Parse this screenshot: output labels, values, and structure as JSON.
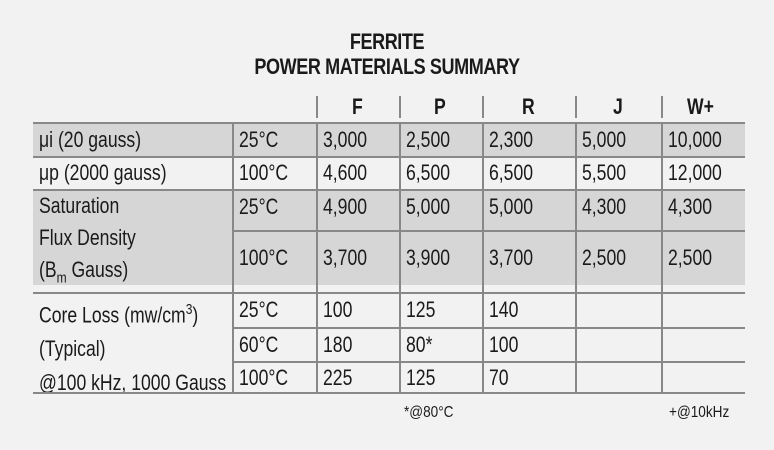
{
  "title": {
    "line1": "FERRITE",
    "line2": "POWER MATERIALS SUMMARY"
  },
  "columns": [
    "F",
    "P",
    "R",
    "J",
    "W+"
  ],
  "rows": {
    "ui": {
      "label": "μi (20 gauss)",
      "temp": "25°C",
      "values": [
        "3,000",
        "2,500",
        "2,300",
        "5,000",
        "10,000"
      ]
    },
    "up": {
      "label": "μp (2000 gauss)",
      "temp": "100°C",
      "values": [
        "4,600",
        "6,500",
        "6,500",
        "5,500",
        "12,000"
      ]
    },
    "sat": {
      "label_line1": "Saturation",
      "label_line2": "Flux Density",
      "label_line3_pre": "(B",
      "label_line3_sub": "m",
      "label_line3_post": " Gauss)",
      "r1": {
        "temp": "25°C",
        "values": [
          "4,900",
          "5,000",
          "5,000",
          "4,300",
          "4,300"
        ]
      },
      "r2": {
        "temp": "100°C",
        "values": [
          "3,700",
          "3,900",
          "3,700",
          "2,500",
          "2,500"
        ]
      }
    },
    "loss": {
      "label_line1_pre": "Core Loss (mw/cm",
      "label_line1_sup": "3",
      "label_line1_post": ")",
      "label_line2": "(Typical)",
      "label_line3": "@100 kHz, 1000 Gauss",
      "r1": {
        "temp": "25°C",
        "values": [
          "100",
          "125",
          "140",
          "",
          ""
        ]
      },
      "r2": {
        "temp": "60°C",
        "values": [
          "180",
          "80*",
          "100",
          "",
          ""
        ]
      },
      "r3": {
        "temp": "100°C",
        "values": [
          "225",
          "125",
          "70",
          "",
          ""
        ]
      }
    }
  },
  "notes": {
    "p_note": "*@80°C",
    "w_note": "+@10kHz"
  }
}
